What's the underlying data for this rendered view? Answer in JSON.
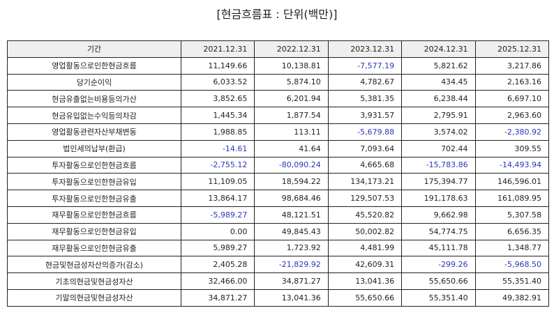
{
  "title": "[현금흐름표 : 단위(백만)]",
  "table": {
    "header_label": "기간",
    "years": [
      "2021.12.31",
      "2022.12.31",
      "2023.12.31",
      "2024.12.31",
      "2025.12.31"
    ],
    "rows": [
      {
        "label": "영업활동으로인한현금흐름",
        "values": [
          "11,149.66",
          "10,138.81",
          "-7,577.19",
          "5,821.62",
          "3,217.86"
        ]
      },
      {
        "label": "당기순이익",
        "values": [
          "6,033.52",
          "5,874.10",
          "4,782.67",
          "434.45",
          "2,163.16"
        ]
      },
      {
        "label": "현금유출없는비용등의가산",
        "values": [
          "3,852.65",
          "6,201.94",
          "5,381.35",
          "6,238.44",
          "6,697.10"
        ]
      },
      {
        "label": "현금유입없는수익등의차감",
        "values": [
          "1,445.34",
          "1,877.54",
          "3,931.57",
          "2,795.91",
          "2,963.60"
        ]
      },
      {
        "label": "영업활동관련자산부채변동",
        "values": [
          "1,988.85",
          "113.11",
          "-5,679.88",
          "3,574.02",
          "-2,380.92"
        ]
      },
      {
        "label": "법인세의납부(환급)",
        "values": [
          "-14.61",
          "41.64",
          "7,093.64",
          "702.44",
          "309.55"
        ]
      },
      {
        "label": "투자활동으로인한현금흐름",
        "values": [
          "-2,755.12",
          "-80,090.24",
          "4,665.68",
          "-15,783.86",
          "-14,493.94"
        ]
      },
      {
        "label": "투자활동으로인한현금유입",
        "values": [
          "11,109.05",
          "18,594.22",
          "134,173.21",
          "175,394.77",
          "146,596.01"
        ]
      },
      {
        "label": "투자활동으로인한현금유출",
        "values": [
          "13,864.17",
          "98,684.46",
          "129,507.53",
          "191,178.63",
          "161,089.95"
        ]
      },
      {
        "label": "재무활동으로인한현금흐름",
        "values": [
          "-5,989.27",
          "48,121.51",
          "45,520.82",
          "9,662.98",
          "5,307.58"
        ]
      },
      {
        "label": "재무활동으로인한현금유입",
        "values": [
          "0.00",
          "49,845.43",
          "50,002.82",
          "54,774.75",
          "6,656.35"
        ]
      },
      {
        "label": "재무활동으로인한현금유출",
        "values": [
          "5,989.27",
          "1,723.92",
          "4,481.99",
          "45,111.78",
          "1,348.77"
        ]
      },
      {
        "label": "현금및현금성자산의증가(감소)",
        "values": [
          "2,405.28",
          "-21,829.92",
          "42,609.31",
          "-299.26",
          "-5,968.50"
        ]
      },
      {
        "label": "기초의현금및현금성자산",
        "values": [
          "32,466.00",
          "34,871.27",
          "13,041.36",
          "55,650.66",
          "55,351.40"
        ]
      },
      {
        "label": "기말의현금및현금성자산",
        "values": [
          "34,871.27",
          "13,041.36",
          "55,650.66",
          "55,351.40",
          "49,382.91"
        ]
      }
    ],
    "negative_color": "#2a36b8"
  }
}
